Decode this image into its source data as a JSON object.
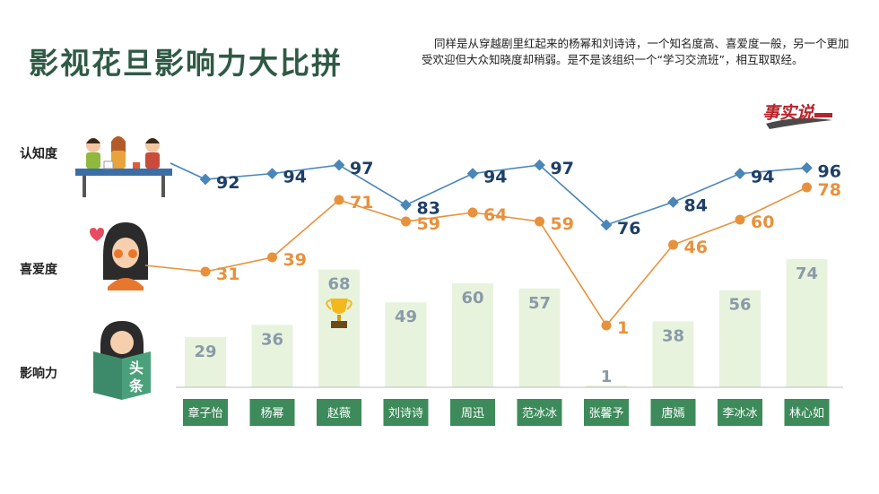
{
  "title": "影视花旦影响力大比拼",
  "subtitle": "同样是从穿越剧里红起来的杨幂和刘诗诗，一个知名度高、喜爱度一般，另一个更加受欢迎但大众知晓度却稍弱。是不是该组织一个“学习交流班”，相互取取经。",
  "logo_text": "事实说",
  "row_labels": [
    "认知度",
    "喜爱度",
    "影响力"
  ],
  "colors": {
    "recognition": "#4a86b8",
    "recognition_label": "#1e3f66",
    "likeability": "#e8913c",
    "likeability_label": "#e8913c",
    "influence_bar": "#e8f3de",
    "influence_label": "#8a9aa8",
    "name_box": "#3d8a5a",
    "title": "#2f5a45"
  },
  "chart_data": {
    "type": "bar+line",
    "categories": [
      "章子怡",
      "杨幂",
      "赵薇",
      "刘诗诗",
      "周迅",
      "范冰冰",
      "张馨予",
      "唐嫣",
      "李冰冰",
      "林心如"
    ],
    "series": [
      {
        "name": "认知度",
        "type": "line",
        "values": [
          92,
          94,
          97,
          83,
          94,
          97,
          76,
          84,
          94,
          96
        ]
      },
      {
        "name": "喜爱度",
        "type": "line",
        "values": [
          31,
          39,
          71,
          59,
          64,
          59,
          1,
          46,
          60,
          78
        ]
      },
      {
        "name": "影响力",
        "type": "bar",
        "values": [
          29,
          36,
          68,
          49,
          60,
          57,
          1,
          38,
          56,
          74
        ]
      }
    ],
    "highlight": {
      "category": "赵薇",
      "icon": "trophy-icon"
    }
  }
}
